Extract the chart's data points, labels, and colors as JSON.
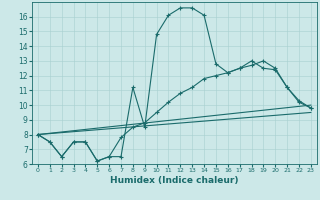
{
  "xlabel": "Humidex (Indice chaleur)",
  "background_color": "#cce8e8",
  "line_color": "#1a6b6b",
  "xlim": [
    -0.5,
    23.5
  ],
  "ylim": [
    6,
    17
  ],
  "xticks": [
    0,
    1,
    2,
    3,
    4,
    5,
    6,
    7,
    8,
    9,
    10,
    11,
    12,
    13,
    14,
    15,
    16,
    17,
    18,
    19,
    20,
    21,
    22,
    23
  ],
  "yticks": [
    6,
    7,
    8,
    9,
    10,
    11,
    12,
    13,
    14,
    15,
    16
  ],
  "lines": [
    {
      "x": [
        0,
        1,
        2,
        3,
        4,
        5,
        6,
        7,
        8,
        9,
        10,
        11,
        12,
        13,
        14,
        15,
        16,
        17,
        18,
        19,
        20,
        21,
        22,
        23
      ],
      "y": [
        8.0,
        7.5,
        6.5,
        7.5,
        7.5,
        6.2,
        6.5,
        6.5,
        11.2,
        8.5,
        14.8,
        16.1,
        16.6,
        16.6,
        16.1,
        12.8,
        12.2,
        12.5,
        13.0,
        12.5,
        12.4,
        11.2,
        10.3,
        9.8
      ],
      "marker": true
    },
    {
      "x": [
        0,
        1,
        2,
        3,
        4,
        5,
        6,
        7,
        8,
        9,
        10,
        11,
        12,
        13,
        14,
        15,
        16,
        17,
        18,
        19,
        20,
        21,
        22,
        23
      ],
      "y": [
        8.0,
        7.5,
        6.5,
        7.5,
        7.5,
        6.2,
        6.5,
        7.8,
        8.5,
        8.8,
        9.5,
        10.2,
        10.8,
        11.2,
        11.8,
        12.0,
        12.2,
        12.5,
        12.7,
        13.0,
        12.5,
        11.2,
        10.2,
        9.8
      ],
      "marker": true
    },
    {
      "x": [
        0,
        23
      ],
      "y": [
        8.0,
        10.0
      ],
      "marker": false
    },
    {
      "x": [
        0,
        23
      ],
      "y": [
        8.0,
        9.5
      ],
      "marker": false
    }
  ]
}
